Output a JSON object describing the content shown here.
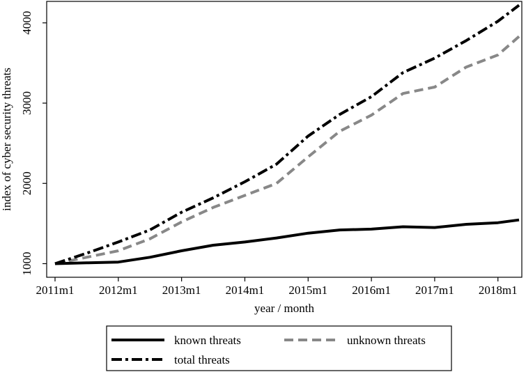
{
  "chart_data": {
    "type": "line",
    "title": "",
    "xlabel": "year / month",
    "ylabel": "index of cyber security threats",
    "x_ticks": [
      "2011m1",
      "2012m1",
      "2013m1",
      "2014m1",
      "2015m1",
      "2016m1",
      "2017m1",
      "2018m1"
    ],
    "y_ticks": [
      "1000",
      "2000",
      "3000",
      "4000"
    ],
    "xlim": [
      "2011m1",
      "2018m5"
    ],
    "ylim": [
      900,
      4250
    ],
    "grid": false,
    "legend_position": "bottom",
    "x": [
      "2011m1",
      "2011m7",
      "2012m1",
      "2012m7",
      "2013m1",
      "2013m7",
      "2014m1",
      "2014m7",
      "2015m1",
      "2015m7",
      "2016m1",
      "2016m7",
      "2017m1",
      "2017m7",
      "2018m1",
      "2018m5"
    ],
    "series": [
      {
        "name": "known threats",
        "color": "#000000",
        "dash": "solid",
        "values": [
          1000,
          1010,
          1020,
          1080,
          1160,
          1230,
          1270,
          1320,
          1380,
          1420,
          1430,
          1460,
          1450,
          1490,
          1510,
          1545
        ]
      },
      {
        "name": "unknown threats",
        "color": "#888888",
        "dash": "dash",
        "values": [
          1000,
          1080,
          1160,
          1310,
          1520,
          1700,
          1850,
          2000,
          2330,
          2650,
          2850,
          3120,
          3200,
          3450,
          3600,
          3830
        ]
      },
      {
        "name": "total threats",
        "color": "#000000",
        "dash": "dash-dot",
        "values": [
          1000,
          1130,
          1270,
          1420,
          1640,
          1820,
          2020,
          2240,
          2590,
          2860,
          3080,
          3380,
          3560,
          3780,
          4020,
          4220
        ]
      }
    ]
  }
}
